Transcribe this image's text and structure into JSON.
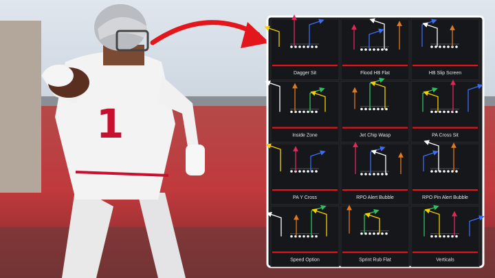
{
  "thumbnail": {
    "jersey_number": "1",
    "plays": [
      "Dagger Sit",
      "Flood HB Flat",
      "HB Slip Screen",
      "Inside Zone",
      "Jet Chip Wasp",
      "PA Cross Sit",
      "PA Y Cross",
      "RPO Alert Bubble",
      "RPO Pin Alert Bubble",
      "Speed Option",
      "Sprint Rub Flat",
      "Verticals"
    ]
  }
}
